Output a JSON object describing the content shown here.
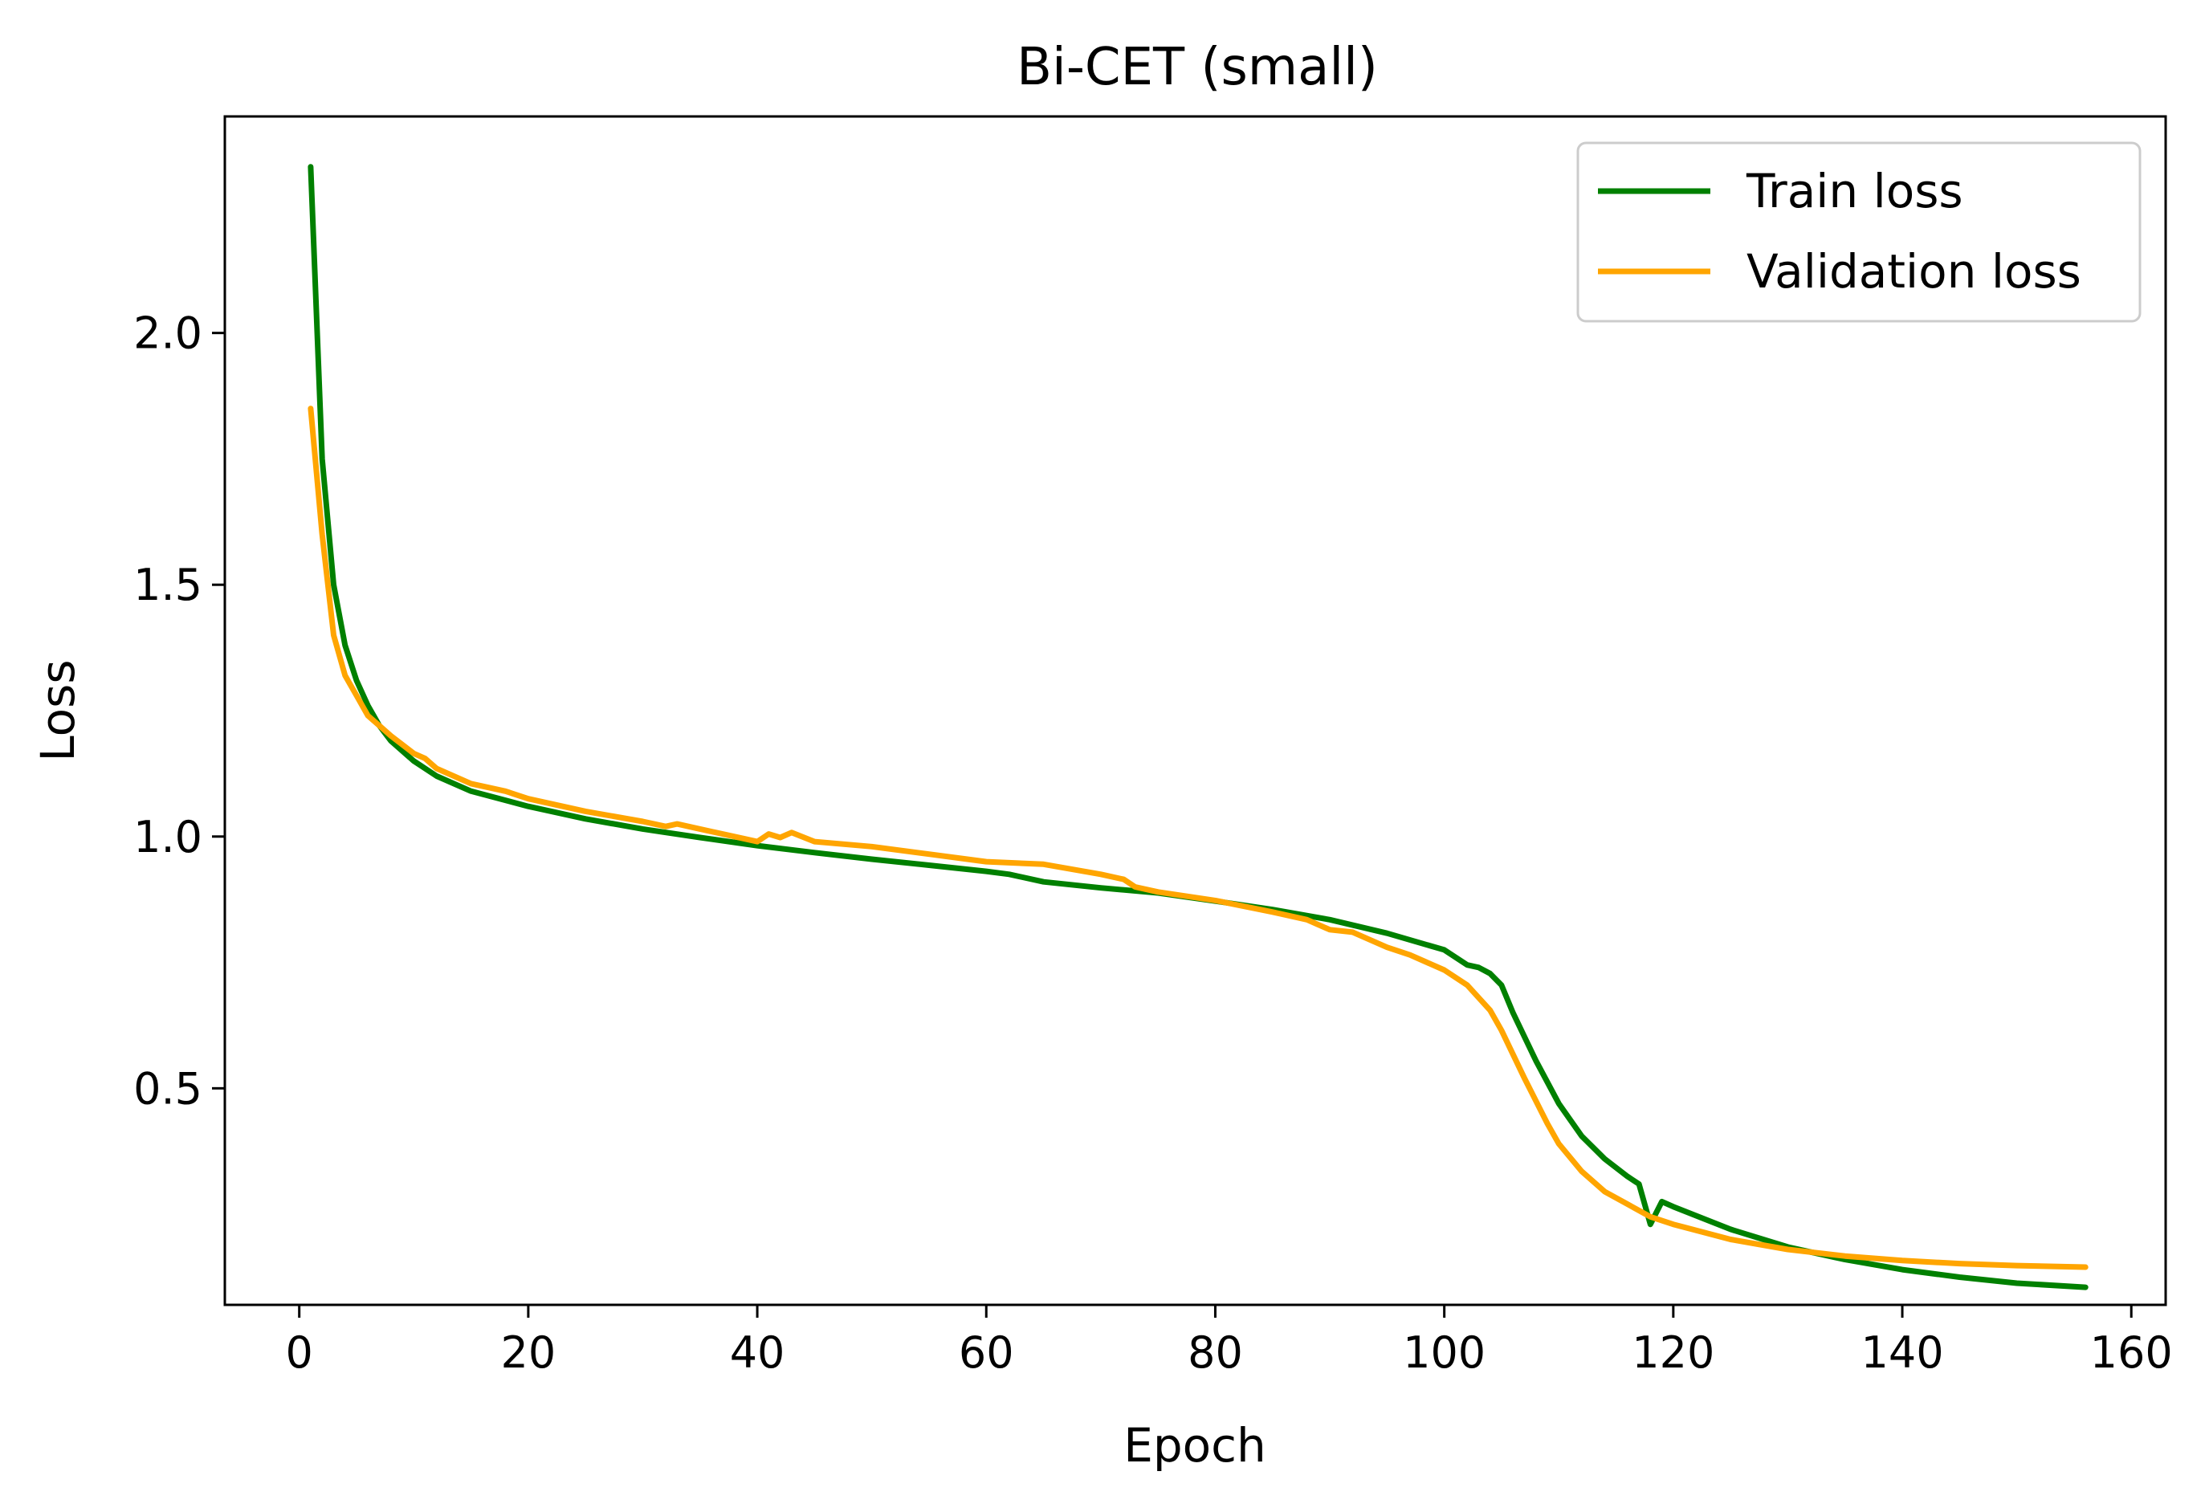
{
  "chart_data": {
    "type": "line",
    "title": "Bi-CET (small)",
    "xlabel": "Epoch",
    "ylabel": "Loss",
    "xlim": [
      -6.5,
      163
    ],
    "ylim": [
      0.07,
      2.43
    ],
    "xticks": [
      0,
      20,
      40,
      60,
      80,
      100,
      120,
      140,
      160
    ],
    "yticks": [
      0.5,
      1.0,
      1.5,
      2.0
    ],
    "xtick_labels": [
      "0",
      "20",
      "40",
      "60",
      "80",
      "100",
      "120",
      "140",
      "160"
    ],
    "ytick_labels": [
      "0.5",
      "1.0",
      "1.5",
      "2.0"
    ],
    "grid": false,
    "legend_position": "top-right",
    "series": [
      {
        "name": "Train loss",
        "color": "#008000",
        "points": [
          [
            1,
            2.33
          ],
          [
            2,
            1.75
          ],
          [
            3,
            1.5
          ],
          [
            4,
            1.38
          ],
          [
            5,
            1.31
          ],
          [
            6,
            1.26
          ],
          [
            7,
            1.22
          ],
          [
            8,
            1.19
          ],
          [
            10,
            1.15
          ],
          [
            12,
            1.12
          ],
          [
            15,
            1.09
          ],
          [
            20,
            1.06
          ],
          [
            25,
            1.035
          ],
          [
            30,
            1.015
          ],
          [
            35,
            0.998
          ],
          [
            40,
            0.982
          ],
          [
            45,
            0.968
          ],
          [
            50,
            0.955
          ],
          [
            55,
            0.943
          ],
          [
            60,
            0.931
          ],
          [
            62,
            0.925
          ],
          [
            65,
            0.91
          ],
          [
            70,
            0.898
          ],
          [
            75,
            0.888
          ],
          [
            80,
            0.872
          ],
          [
            85,
            0.855
          ],
          [
            90,
            0.835
          ],
          [
            95,
            0.808
          ],
          [
            100,
            0.775
          ],
          [
            102,
            0.745
          ],
          [
            103,
            0.74
          ],
          [
            104,
            0.728
          ],
          [
            105,
            0.705
          ],
          [
            106,
            0.65
          ],
          [
            108,
            0.555
          ],
          [
            110,
            0.47
          ],
          [
            112,
            0.405
          ],
          [
            114,
            0.36
          ],
          [
            116,
            0.325
          ],
          [
            117,
            0.31
          ],
          [
            118,
            0.23
          ],
          [
            119,
            0.275
          ],
          [
            120,
            0.265
          ],
          [
            125,
            0.22
          ],
          [
            130,
            0.185
          ],
          [
            135,
            0.16
          ],
          [
            140,
            0.14
          ],
          [
            145,
            0.125
          ],
          [
            150,
            0.113
          ],
          [
            156,
            0.105
          ]
        ]
      },
      {
        "name": "Validation loss",
        "color": "#FFA500",
        "points": [
          [
            1,
            1.85
          ],
          [
            2,
            1.6
          ],
          [
            3,
            1.4
          ],
          [
            4,
            1.32
          ],
          [
            5,
            1.28
          ],
          [
            6,
            1.24
          ],
          [
            7,
            1.22
          ],
          [
            8,
            1.2
          ],
          [
            10,
            1.165
          ],
          [
            11,
            1.155
          ],
          [
            12,
            1.135
          ],
          [
            15,
            1.105
          ],
          [
            18,
            1.09
          ],
          [
            20,
            1.075
          ],
          [
            25,
            1.05
          ],
          [
            30,
            1.03
          ],
          [
            32,
            1.02
          ],
          [
            33,
            1.025
          ],
          [
            35,
            1.015
          ],
          [
            38,
            1.0
          ],
          [
            40,
            0.99
          ],
          [
            41,
            1.005
          ],
          [
            42,
            0.998
          ],
          [
            43,
            1.008
          ],
          [
            45,
            0.99
          ],
          [
            50,
            0.98
          ],
          [
            55,
            0.965
          ],
          [
            60,
            0.95
          ],
          [
            65,
            0.945
          ],
          [
            70,
            0.925
          ],
          [
            72,
            0.915
          ],
          [
            73,
            0.9
          ],
          [
            75,
            0.89
          ],
          [
            80,
            0.873
          ],
          [
            85,
            0.85
          ],
          [
            88,
            0.835
          ],
          [
            90,
            0.815
          ],
          [
            92,
            0.81
          ],
          [
            95,
            0.78
          ],
          [
            97,
            0.765
          ],
          [
            100,
            0.735
          ],
          [
            102,
            0.705
          ],
          [
            104,
            0.655
          ],
          [
            105,
            0.615
          ],
          [
            107,
            0.52
          ],
          [
            109,
            0.43
          ],
          [
            110,
            0.39
          ],
          [
            112,
            0.335
          ],
          [
            114,
            0.295
          ],
          [
            116,
            0.27
          ],
          [
            118,
            0.245
          ],
          [
            120,
            0.23
          ],
          [
            125,
            0.2
          ],
          [
            130,
            0.18
          ],
          [
            135,
            0.167
          ],
          [
            140,
            0.158
          ],
          [
            145,
            0.152
          ],
          [
            150,
            0.148
          ],
          [
            156,
            0.145
          ]
        ]
      }
    ]
  }
}
